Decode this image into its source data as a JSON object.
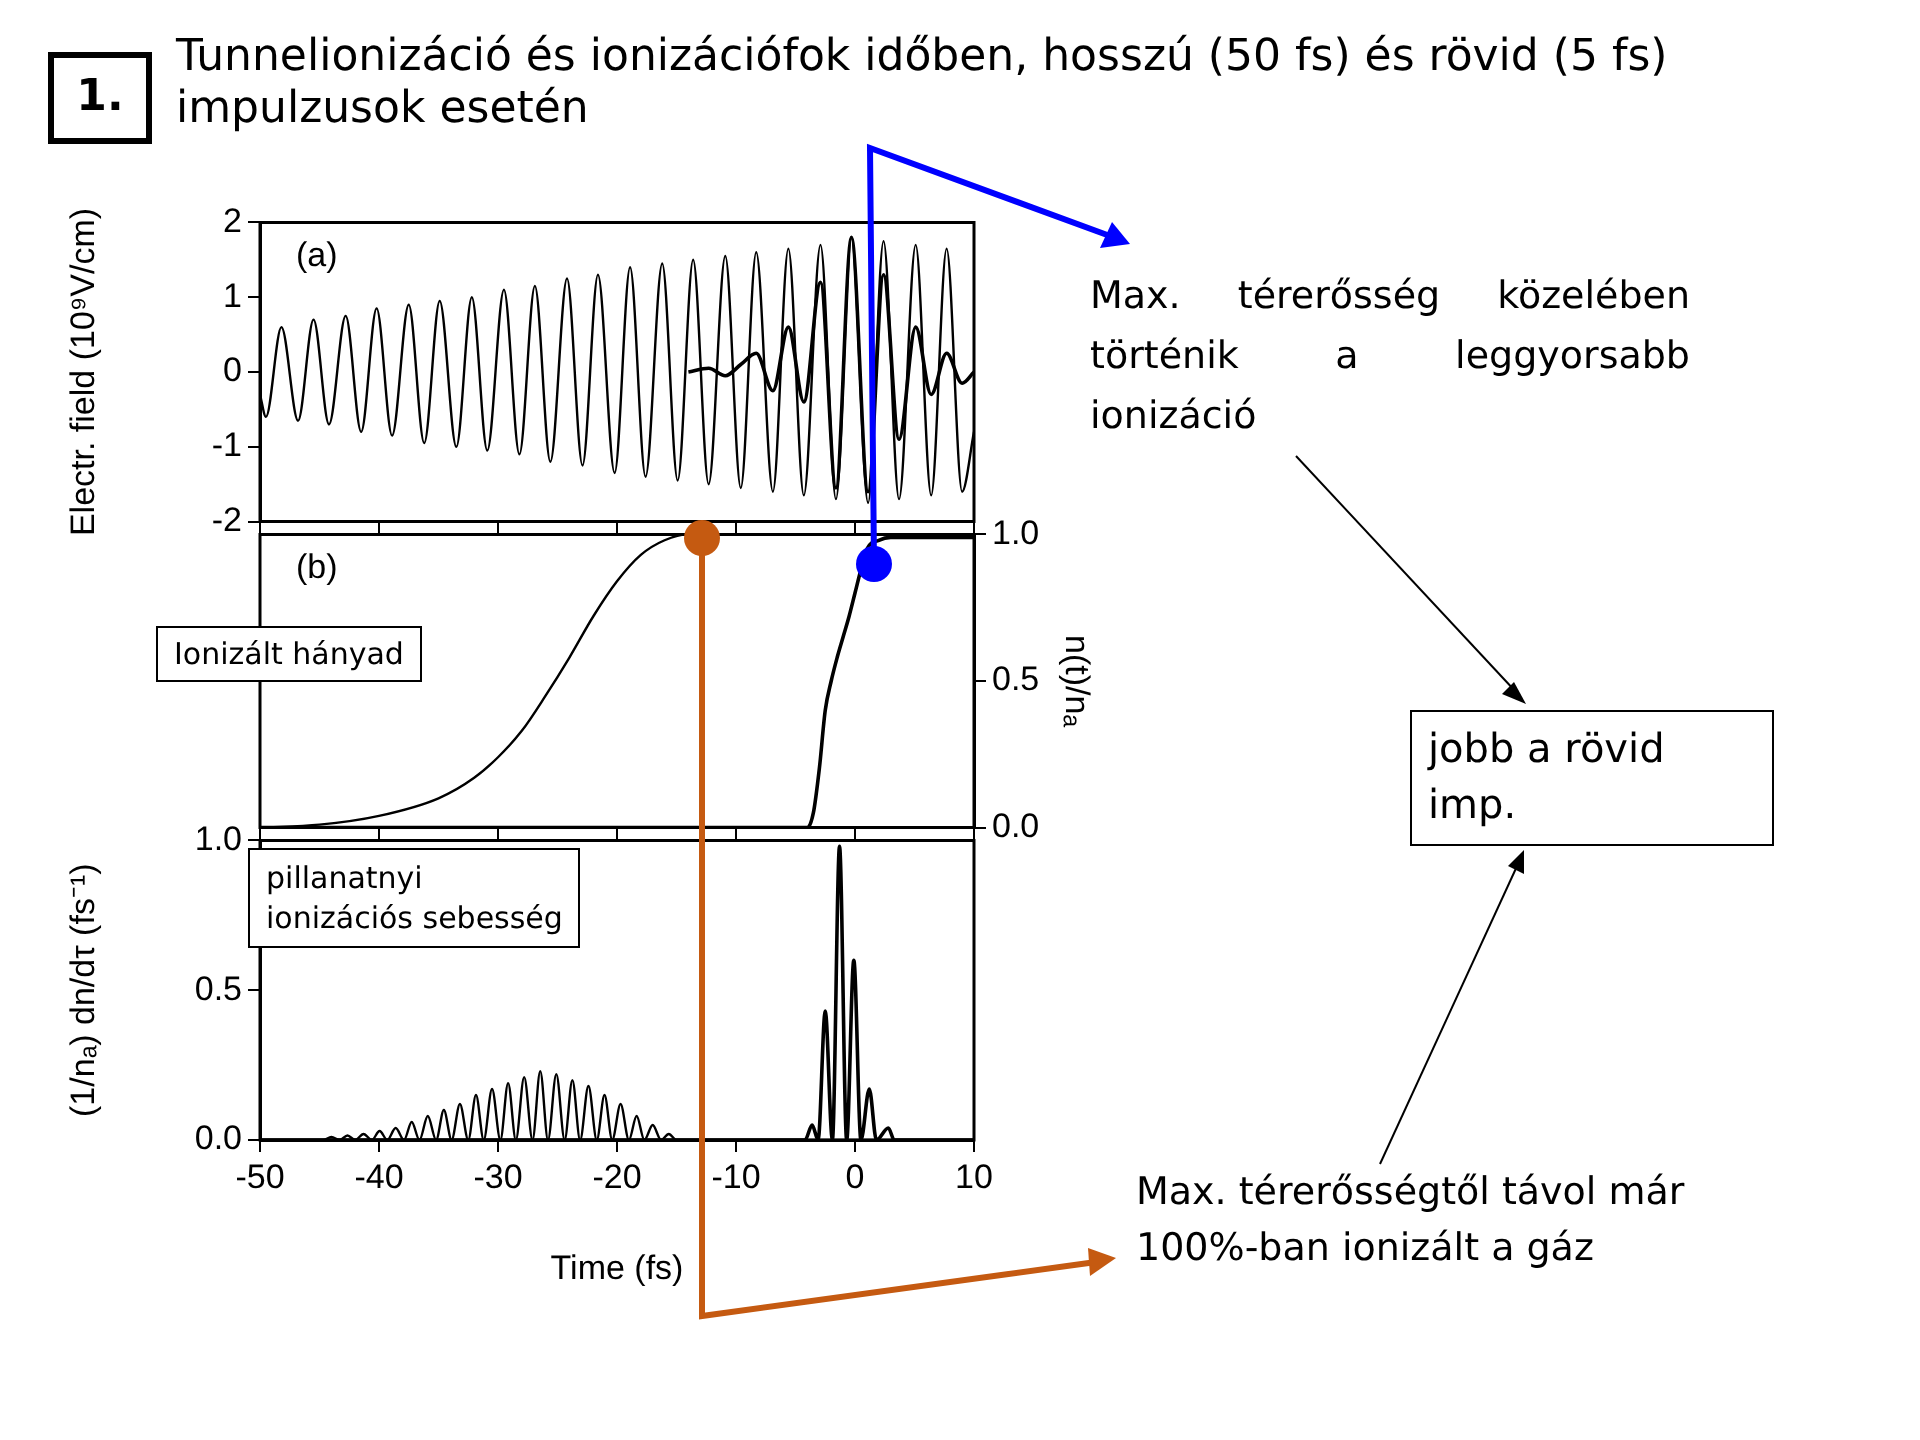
{
  "chart_data": [
    {
      "type": "line",
      "title": "Tunnelionizáció és ionizációfok időben, hosszú (50 fs) és rövid (5 fs) impulzusok esetén",
      "ylabel": "Electr. field (10⁹V/cm)",
      "annotations": [
        "1.",
        "(a)",
        "Max. térerősség közelében történik a leggyorsabb ionizáció",
        "jobb a rövid imp.",
        "Max. térerősségtől távol már 100%-ban ionizált a gáz"
      ],
      "xlim": [
        -50,
        10
      ],
      "xticks": [
        -50,
        -40,
        -30,
        -20,
        -10,
        0,
        10
      ],
      "ylim": [
        -2,
        2
      ],
      "yticks": [
        -2,
        -1,
        0,
        1,
        2
      ],
      "tick_labels": "y",
      "series": [
        {
          "color": "#000000",
          "x": [
            -50,
            -49.5,
            -48.2,
            -46.8,
            -45.5,
            -44.2,
            -42.8,
            -41.5,
            -40.2,
            -38.9,
            -37.5,
            -36.2,
            -34.9,
            -33.5,
            -32.2,
            -30.9,
            -29.5,
            -28.2,
            -26.9,
            -25.6,
            -24.2,
            -22.9,
            -21.6,
            -20.2,
            -18.9,
            -17.6,
            -16.2,
            -14.9,
            -13.6,
            -12.3,
            -10.9,
            -9.6,
            -8.3,
            -6.9,
            -5.6,
            -4.3,
            -2.9,
            -1.6,
            -0.3,
            1.1,
            2.4,
            3.7,
            5.1,
            6.4,
            7.7,
            9,
            10
          ],
          "values": [
            -0.3,
            -0.6,
            0.6,
            -0.65,
            0.7,
            -0.7,
            0.75,
            -0.8,
            0.85,
            -0.85,
            0.9,
            -0.95,
            0.95,
            -1,
            1,
            -1.05,
            1.1,
            -1.1,
            1.15,
            -1.2,
            1.25,
            -1.25,
            1.3,
            -1.35,
            1.4,
            -1.4,
            1.45,
            -1.45,
            1.5,
            -1.5,
            1.55,
            -1.55,
            1.6,
            -1.6,
            1.65,
            -1.65,
            1.7,
            -1.7,
            1.8,
            -1.75,
            1.75,
            -1.7,
            1.7,
            -1.65,
            1.65,
            -1.6,
            -0.8
          ]
        },
        {
          "color": "#000000",
          "x": [
            -14,
            -12.3,
            -10.9,
            -9.6,
            -8.3,
            -6.9,
            -5.6,
            -4.3,
            -2.9,
            -1.6,
            -0.3,
            1.1,
            2.4,
            3.7,
            5.1,
            6.4,
            7.7,
            9,
            10
          ],
          "values": [
            0,
            0.05,
            -0.05,
            0.1,
            0.25,
            -0.25,
            0.6,
            -0.4,
            1.2,
            -1.55,
            1.8,
            -1.6,
            1.3,
            -0.9,
            0.6,
            -0.3,
            0.25,
            -0.15,
            0
          ]
        }
      ]
    },
    {
      "type": "line",
      "annotations": [
        "(b)",
        "Ionizált hányad"
      ],
      "xlim": [
        -50,
        10
      ],
      "xticks": [
        -50,
        -40,
        -30,
        -20,
        -10,
        0,
        10
      ],
      "y2lim": [
        0,
        1
      ],
      "y2ticks": [
        {
          "value": 0,
          "label": "0.0"
        },
        {
          "value": 0.5,
          "label": "0.5"
        },
        {
          "value": 1,
          "label": "1.0"
        }
      ],
      "y2label": "n(t)/nₐ",
      "tick_labels": "y",
      "series": [
        {
          "color": "#000000",
          "axis": "y2",
          "x": [
            -50,
            -45,
            -40,
            -35,
            -32,
            -30,
            -28,
            -26,
            -24,
            -22,
            -20,
            -18,
            -16,
            -14,
            10
          ],
          "values": [
            0,
            0.01,
            0.04,
            0.1,
            0.17,
            0.24,
            0.33,
            0.45,
            0.58,
            0.72,
            0.84,
            0.93,
            0.98,
            1,
            1
          ]
        },
        {
          "color": "#000000",
          "axis": "y2",
          "x": [
            -50,
            -4,
            -3.5,
            -3,
            -2.5,
            -2,
            -1.5,
            -1,
            -0.5,
            0,
            0.5,
            1,
            2,
            3,
            10
          ],
          "values": [
            0,
            0,
            0.05,
            0.2,
            0.4,
            0.5,
            0.58,
            0.65,
            0.72,
            0.8,
            0.88,
            0.95,
            0.98,
            0.99,
            0.99
          ]
        }
      ]
    },
    {
      "type": "line",
      "xlabel": "Time (fs)",
      "ylabel": "(1/nₐ) dn/dτ (fs⁻¹)",
      "annotations": [
        "pillanatnyi\nionizációs sebesség"
      ],
      "xlim": [
        -50,
        10
      ],
      "xticks": [
        -50,
        -40,
        -30,
        -20,
        -10,
        0,
        10
      ],
      "ylim": [
        0,
        1
      ],
      "yticks": [
        {
          "value": 0,
          "label": "0.0"
        },
        {
          "value": 0.5,
          "label": "0.5"
        },
        {
          "value": 1,
          "label": "1.0"
        }
      ],
      "series": [
        {
          "color": "#000000",
          "x": [
            -50,
            -44.7,
            -44,
            -43.3,
            -42.65,
            -42,
            -41.3,
            -40.6,
            -39.95,
            -39.3,
            -38.6,
            -37.9,
            -37.25,
            -36.6,
            -35.9,
            -35.2,
            -34.55,
            -33.9,
            -33.2,
            -32.5,
            -31.85,
            -31.2,
            -30.5,
            -29.8,
            -29.15,
            -28.5,
            -27.8,
            -27.1,
            -26.45,
            -25.8,
            -25.1,
            -24.4,
            -23.75,
            -23.1,
            -22.4,
            -21.7,
            -21.05,
            -20.4,
            -19.7,
            -19,
            -18.35,
            -17.7,
            -17,
            -16.3,
            -15.65,
            -15,
            10
          ],
          "values": [
            0,
            0,
            0.01,
            0,
            0.015,
            0,
            0.02,
            0,
            0.03,
            0,
            0.04,
            0,
            0.06,
            0,
            0.08,
            0,
            0.1,
            0,
            0.12,
            0,
            0.15,
            0,
            0.17,
            0,
            0.19,
            0,
            0.21,
            0,
            0.23,
            0,
            0.22,
            0,
            0.2,
            0,
            0.18,
            0,
            0.15,
            0,
            0.12,
            0,
            0.08,
            0,
            0.05,
            0,
            0.02,
            0,
            0
          ]
        },
        {
          "color": "#000000",
          "x": [
            -50,
            -4.2,
            -3.6,
            -3.1,
            -2.5,
            -1.9,
            -1.3,
            -0.7,
            -0.1,
            0.5,
            1.2,
            1.8,
            2.8,
            3.3,
            10
          ],
          "values": [
            0,
            0,
            0.05,
            0,
            0.43,
            0,
            0.98,
            0,
            0.6,
            0,
            0.17,
            0,
            0.04,
            0,
            0
          ]
        }
      ]
    }
  ]
}
